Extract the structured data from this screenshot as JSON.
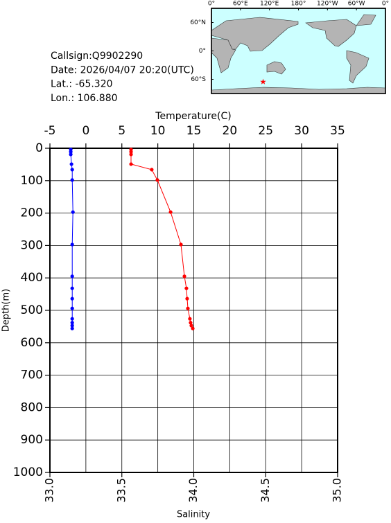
{
  "chart_data": {
    "type": "profile",
    "info": [
      "Callsign:Q9902290",
      "Date:  2026/04/07 20:20(UTC)",
      "Lat.:  -65.320",
      "Lon.:  106.880"
    ],
    "xlabel": "Temperature(C)",
    "x2label": "Salinity",
    "ylabel": "Depth(m)",
    "xlim": [
      -5,
      35
    ],
    "xticks": [
      -5,
      0,
      5,
      10,
      15,
      20,
      25,
      30,
      35
    ],
    "x2lim": [
      33,
      35
    ],
    "x2ticks": [
      {
        "value": 33,
        "label": "33.0"
      },
      {
        "value": 33.5,
        "label": "33.5"
      },
      {
        "value": 34,
        "label": "34.0"
      },
      {
        "value": 34.5,
        "label": "34.5"
      },
      {
        "value": 35,
        "label": "35.0"
      }
    ],
    "ylim": [
      1000,
      0
    ],
    "yticks": [
      0,
      100,
      200,
      300,
      400,
      500,
      600,
      700,
      800,
      900,
      1000
    ],
    "grid": true,
    "depth": [
      4,
      11,
      19,
      49,
      66,
      98,
      197,
      297,
      395,
      432,
      464,
      494,
      526,
      538,
      547,
      556
    ],
    "series": [
      {
        "name": "Temperature",
        "axis": "x",
        "color": "#0000ff",
        "values": [
          -2.1,
          -2.1,
          -2.1,
          -2.0,
          -1.9,
          -1.9,
          -1.8,
          -1.9,
          -1.9,
          -1.9,
          -1.9,
          -1.9,
          -1.9,
          -1.9,
          -1.9,
          -1.9
        ]
      },
      {
        "name": "Salinity",
        "axis": "x2",
        "color": "#ff0000",
        "values": [
          33.564,
          33.564,
          33.564,
          33.564,
          33.708,
          33.747,
          33.839,
          33.911,
          33.935,
          33.949,
          33.954,
          33.959,
          33.973,
          33.978,
          33.983,
          33.993
        ]
      }
    ],
    "map": {
      "lonlim": [
        0,
        360
      ],
      "latlim": [
        90,
        -90
      ],
      "lonticks": [
        {
          "value": 0,
          "label": "0°"
        },
        {
          "value": 60,
          "label": "60°E"
        },
        {
          "value": 120,
          "label": "120°E"
        },
        {
          "value": 180,
          "label": "180°"
        },
        {
          "value": 240,
          "label": "120°W"
        },
        {
          "value": 300,
          "label": "60°W"
        },
        {
          "value": 360,
          "label": "0°"
        }
      ],
      "latticks": [
        {
          "value": 60,
          "label": "60°N"
        },
        {
          "value": 0,
          "label": "0°"
        },
        {
          "value": -60,
          "label": "60°S"
        }
      ],
      "float": {
        "lon": 106.88,
        "lat": -65.32,
        "color": "#ff0000"
      }
    }
  }
}
